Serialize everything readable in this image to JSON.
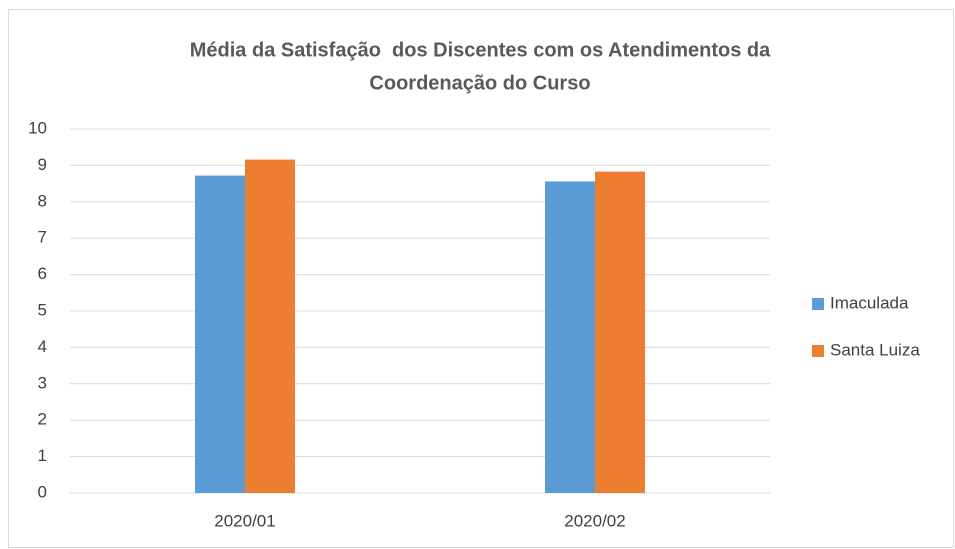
{
  "chart_data": {
    "type": "bar",
    "title": [
      "Média da Satisfação  dos Discentes com os Atendimentos da",
      "Coordenação do Curso"
    ],
    "categories": [
      "2020/01",
      "2020/02"
    ],
    "series": [
      {
        "name": "Imaculada",
        "color": "#5b9bd5",
        "values": [
          8.72,
          8.56
        ]
      },
      {
        "name": "Santa Luiza",
        "color": "#ed7d31",
        "values": [
          9.16,
          8.83
        ]
      }
    ],
    "ylim": [
      0,
      10
    ],
    "yticks": [
      0,
      1,
      2,
      3,
      4,
      5,
      6,
      7,
      8,
      9,
      10
    ],
    "grid": true,
    "legend": "right"
  }
}
